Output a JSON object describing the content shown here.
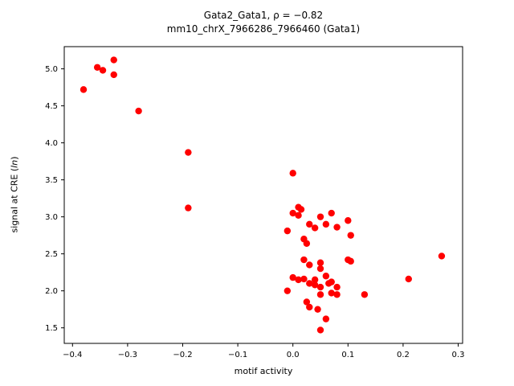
{
  "title": {
    "line1": "Gata2_Gata1, ρ = −0.82",
    "line2": "mm10_chrX_7966286_7966460 (Gata1)"
  },
  "axes": {
    "xlabel": "motif activity",
    "ylabel_prefix": "signal at CRE (",
    "ylabel_italic": "ln",
    "ylabel_suffix": ")"
  },
  "chart_data": {
    "type": "scatter",
    "title": "Gata2_Gata1, ρ = −0.82 | mm10_chrX_7966286_7966460 (Gata1)",
    "xlabel": "motif activity",
    "ylabel": "signal at CRE (ln)",
    "legend": "none",
    "grid": false,
    "marker_color": "#ff0000",
    "marker_radius_px": 4.2,
    "xlim": [
      -0.415,
      0.308
    ],
    "ylim": [
      1.29,
      5.3
    ],
    "x_tick_values": [
      -0.4,
      -0.3,
      -0.2,
      -0.1,
      0.0,
      0.1,
      0.2,
      0.3
    ],
    "x_tick_labels": [
      "−0.4",
      "−0.3",
      "−0.2",
      "−0.1",
      "0.0",
      "0.1",
      "0.2",
      "0.3"
    ],
    "y_tick_values": [
      1.5,
      2.0,
      2.5,
      3.0,
      3.5,
      4.0,
      4.5,
      5.0
    ],
    "y_tick_labels": [
      "1.5",
      "2.0",
      "2.5",
      "3.0",
      "3.5",
      "4.0",
      "4.5",
      "5.0"
    ],
    "points": [
      [
        -0.38,
        4.72
      ],
      [
        -0.355,
        5.02
      ],
      [
        -0.345,
        4.98
      ],
      [
        -0.325,
        5.12
      ],
      [
        -0.325,
        4.92
      ],
      [
        -0.28,
        4.43
      ],
      [
        -0.19,
        3.87
      ],
      [
        -0.19,
        3.12
      ],
      [
        0.0,
        3.59
      ],
      [
        -0.01,
        2.81
      ],
      [
        0.0,
        3.05
      ],
      [
        0.01,
        3.13
      ],
      [
        0.015,
        3.1
      ],
      [
        0.01,
        3.02
      ],
      [
        -0.01,
        2.0
      ],
      [
        0.0,
        2.18
      ],
      [
        0.01,
        2.15
      ],
      [
        0.02,
        2.16
      ],
      [
        0.02,
        2.7
      ],
      [
        0.025,
        2.64
      ],
      [
        0.02,
        2.42
      ],
      [
        0.03,
        2.9
      ],
      [
        0.03,
        2.35
      ],
      [
        0.03,
        2.1
      ],
      [
        0.025,
        1.85
      ],
      [
        0.03,
        1.78
      ],
      [
        0.04,
        2.85
      ],
      [
        0.04,
        2.15
      ],
      [
        0.04,
        2.08
      ],
      [
        0.045,
        1.75
      ],
      [
        0.05,
        3.0
      ],
      [
        0.05,
        2.38
      ],
      [
        0.05,
        2.3
      ],
      [
        0.05,
        2.05
      ],
      [
        0.05,
        1.95
      ],
      [
        0.05,
        1.47
      ],
      [
        0.06,
        2.9
      ],
      [
        0.06,
        2.2
      ],
      [
        0.06,
        1.62
      ],
      [
        0.065,
        2.1
      ],
      [
        0.07,
        3.05
      ],
      [
        0.07,
        2.12
      ],
      [
        0.07,
        1.97
      ],
      [
        0.08,
        2.86
      ],
      [
        0.08,
        2.05
      ],
      [
        0.08,
        1.95
      ],
      [
        0.1,
        2.95
      ],
      [
        0.1,
        2.42
      ],
      [
        0.105,
        2.75
      ],
      [
        0.105,
        2.4
      ],
      [
        0.13,
        1.95
      ],
      [
        0.21,
        2.16
      ],
      [
        0.27,
        2.47
      ]
    ]
  }
}
